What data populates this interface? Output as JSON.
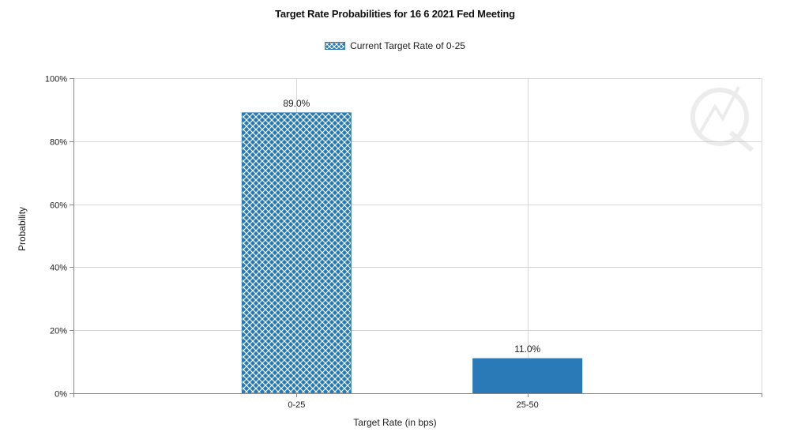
{
  "chart_data": {
    "type": "bar",
    "title": "Target Rate Probabilities for 16 6 2021 Fed Meeting",
    "xlabel": "Target Rate (in bps)",
    "ylabel": "Probability",
    "categories": [
      "0-25",
      "25-50"
    ],
    "series": [
      {
        "name": "Current Target Rate of 0-25",
        "values": [
          89.0,
          11.0
        ]
      }
    ],
    "data_labels": [
      "89.0%",
      "11.0%"
    ],
    "bar_styles": [
      "crosshatch",
      "solid"
    ],
    "ylim": [
      0,
      100
    ],
    "yticks": [
      "0%",
      "20%",
      "40%",
      "60%",
      "80%",
      "100%"
    ],
    "grid": true,
    "legend_position": "top-center",
    "colors": {
      "bar": "#2a7ab8",
      "grid": "#d8d8d8",
      "axis": "#888888"
    }
  }
}
